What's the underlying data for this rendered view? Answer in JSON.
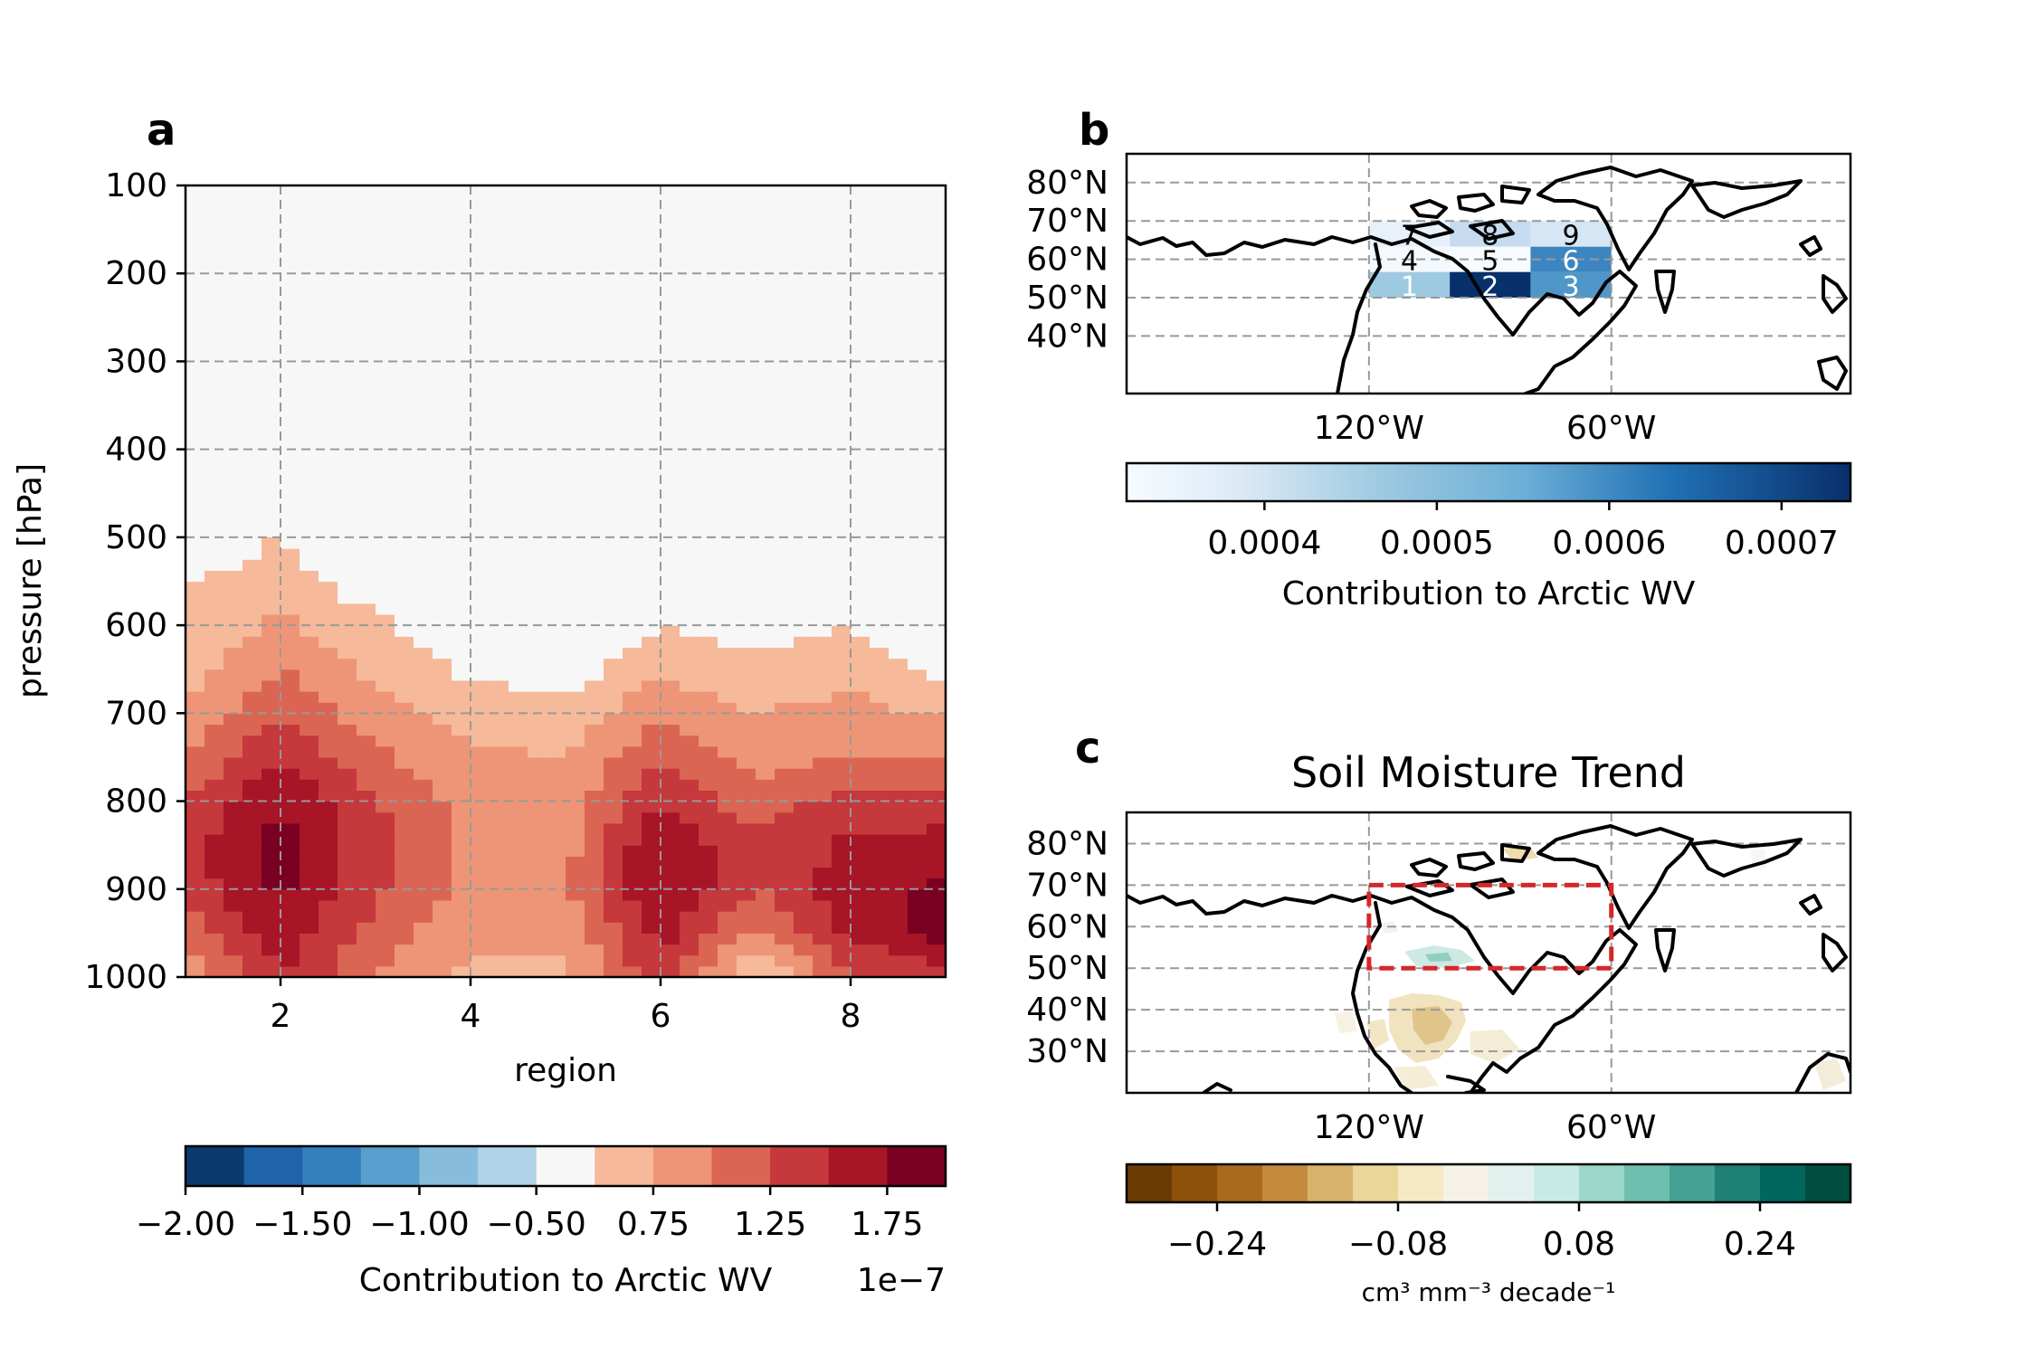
{
  "chart_data": [
    {
      "panel": "a",
      "type": "heatmap",
      "xlabel": "region",
      "ylabel": "pressure [hPa]",
      "x_ticks": [
        2,
        4,
        6,
        8
      ],
      "xlim": [
        1,
        9
      ],
      "y_ticks": [
        100,
        200,
        300,
        400,
        500,
        600,
        700,
        800,
        900,
        1000
      ],
      "ylim": [
        1000,
        100
      ],
      "grid": true,
      "levels": [
        -2.0,
        -1.75,
        -1.5,
        -1.25,
        -1.0,
        -0.75,
        -0.5,
        0.5,
        0.75,
        1.0,
        1.25,
        1.5,
        1.75,
        2.0
      ],
      "level_colors": [
        "#0b3b6e",
        "#1f63ab",
        "#3480bd",
        "#579fcc",
        "#88bcdc",
        "#b0d3e7",
        "#f7f7f7",
        "#f6b99a",
        "#ee9577",
        "#db6553",
        "#c5383c",
        "#a81527",
        "#790023"
      ],
      "x": [
        1,
        2,
        3,
        4,
        5,
        6,
        7,
        8,
        9
      ],
      "pressure": [
        1000,
        950,
        900,
        850,
        800,
        750,
        700,
        650,
        600,
        550,
        500
      ],
      "z": [
        [
          0.8,
          1.5,
          1.0,
          0.7,
          0.7,
          1.4,
          0.45,
          1.2,
          1.3
        ],
        [
          1.1,
          1.65,
          1.15,
          0.8,
          0.8,
          1.6,
          0.9,
          1.55,
          1.9
        ],
        [
          1.35,
          1.8,
          1.3,
          0.9,
          0.95,
          1.8,
          1.25,
          1.65,
          1.8
        ],
        [
          1.4,
          1.85,
          1.35,
          0.95,
          0.9,
          1.75,
          1.3,
          1.55,
          1.6
        ],
        [
          1.25,
          1.75,
          1.25,
          0.9,
          0.85,
          1.5,
          1.1,
          1.35,
          1.35
        ],
        [
          1.0,
          1.5,
          1.05,
          0.8,
          0.75,
          1.2,
          0.9,
          1.0,
          1.0
        ],
        [
          0.8,
          1.25,
          0.85,
          0.65,
          0.6,
          0.95,
          0.75,
          0.85,
          0.7
        ],
        [
          0.65,
          1.0,
          0.7,
          0.45,
          0.35,
          0.7,
          0.55,
          0.65,
          0.4
        ],
        [
          0.55,
          0.8,
          0.55,
          0.3,
          0.2,
          0.5,
          0.4,
          0.5,
          0.3
        ],
        [
          0.5,
          0.6,
          0.35,
          0.2,
          0.1,
          0.3,
          0.25,
          0.3,
          0.2
        ],
        [
          0.3,
          0.52,
          0.2,
          0.1,
          0.05,
          0.2,
          0.15,
          0.2,
          0.1
        ]
      ],
      "colorbar": {
        "label": "Contribution to Arctic WV",
        "ticks": [
          "−2.00",
          "−1.50",
          "−1.00",
          "−0.50",
          "0.75",
          "1.25",
          "1.75"
        ],
        "offset_text": "1e−7"
      }
    },
    {
      "panel": "b",
      "type": "heatmap",
      "title": "",
      "lat_ticks": [
        "80°N",
        "70°N",
        "60°N",
        "50°N",
        "40°N"
      ],
      "lon_ticks": [
        "120°W",
        "60°W"
      ],
      "regions": [
        {
          "label": "1",
          "value": 0.00052,
          "color": "#9ecae1"
        },
        {
          "label": "2",
          "value": 0.00073,
          "color": "#08306b"
        },
        {
          "label": "3",
          "value": 0.00058,
          "color": "#4f97c8"
        },
        {
          "label": "4",
          "value": 0.00031,
          "color": "#f4f9fe"
        },
        {
          "label": "5",
          "value": 0.0003,
          "color": "#f7fbff"
        },
        {
          "label": "6",
          "value": 0.00061,
          "color": "#3d85c0"
        },
        {
          "label": "7",
          "value": 0.00035,
          "color": "#e8f1fa"
        },
        {
          "label": "8",
          "value": 0.00046,
          "color": "#c6dbef"
        },
        {
          "label": "9",
          "value": 0.00042,
          "color": "#d6e6f4"
        }
      ],
      "colorbar": {
        "label": "Contribution to Arctic WV",
        "ticks": [
          "0.0004",
          "0.0005",
          "0.0006",
          "0.0007"
        ],
        "range": [
          0.00032,
          0.00074
        ]
      }
    },
    {
      "panel": "c",
      "type": "heatmap",
      "title": "Soil Moisture Trend",
      "lat_ticks": [
        "80°N",
        "70°N",
        "60°N",
        "50°N",
        "40°N",
        "30°N"
      ],
      "lon_ticks": [
        "120°W",
        "60°W"
      ],
      "highlight_box": {
        "lon": [
          -120,
          -60
        ],
        "lat": [
          50,
          70
        ],
        "color": "#d62728"
      },
      "colorbar": {
        "label": "cm³ mm⁻³ decade⁻¹",
        "ticks": [
          "−0.24",
          "−0.08",
          "0.08",
          "0.24"
        ],
        "colors": [
          "#6b3b06",
          "#8c510a",
          "#a86a1d",
          "#c48b3f",
          "#d9b36b",
          "#ead59a",
          "#f6e8c3",
          "#f5f1e7",
          "#e3f1ee",
          "#c7eae5",
          "#9bd7ca",
          "#6fbfae",
          "#45a193",
          "#1f8075",
          "#01665e",
          "#004d40"
        ]
      }
    }
  ],
  "labels": {
    "a": "a",
    "b": "b",
    "c": "c"
  }
}
